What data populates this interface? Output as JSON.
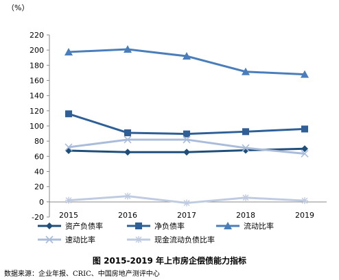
{
  "chart_data": {
    "type": "line",
    "unit_label": "（%）",
    "categories": [
      "2015",
      "2016",
      "2017",
      "2018",
      "2019"
    ],
    "ylim": [
      -20,
      220
    ],
    "yticks": [
      -20,
      0,
      20,
      40,
      60,
      80,
      100,
      120,
      140,
      160,
      180,
      200,
      220
    ],
    "grid": false,
    "legend_position": "bottom",
    "series": [
      {
        "name": "资产负债率",
        "values": [
          67.5,
          65.5,
          65.5,
          68,
          70
        ],
        "marker": "diamond",
        "color": "#1f4e79"
      },
      {
        "name": "净负债率",
        "values": [
          116,
          91,
          89.5,
          92.5,
          96
        ],
        "marker": "square",
        "color": "#2e5f96"
      },
      {
        "name": "流动比率",
        "values": [
          197.5,
          201,
          192,
          171.5,
          168
        ],
        "marker": "triangle",
        "color": "#4a7ebb"
      },
      {
        "name": "速动比率",
        "values": [
          72,
          82,
          82,
          71,
          63.5
        ],
        "marker": "x",
        "color": "#a9bcd9"
      },
      {
        "name": "现金流动负债比率",
        "values": [
          2,
          7.5,
          -1.5,
          5.5,
          1.5
        ],
        "marker": "star",
        "color": "#bfcbe0"
      }
    ]
  },
  "caption": "图 2015-2019 年上市房企偿债能力指标",
  "source": "数据来源：企业年报、CRIC、中国房地产测评中心"
}
